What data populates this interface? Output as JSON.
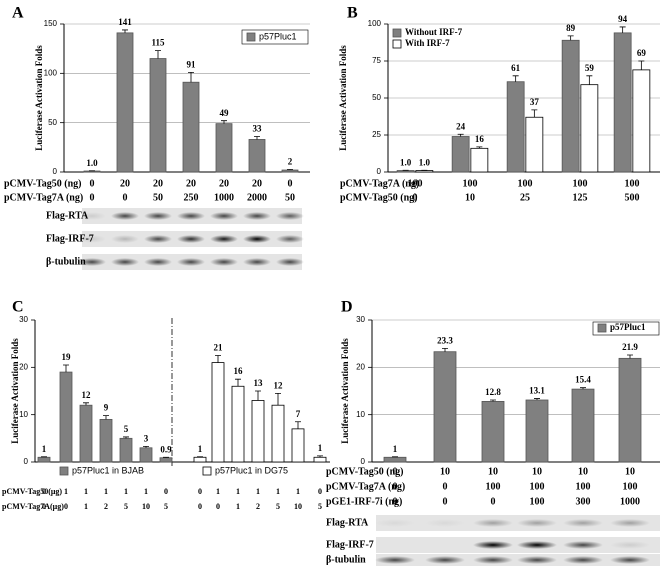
{
  "chart_data": [
    {
      "type": "bar",
      "panel_label": "A",
      "y_label": "Luciferase Activation Folds",
      "series": [
        {
          "name": "p57Pluc1",
          "color": "#808080",
          "values": [
            1.0,
            141,
            115,
            91,
            49,
            33,
            2
          ],
          "value_labels": [
            "1.0",
            "141",
            "115",
            "91",
            "49",
            "33",
            "2"
          ],
          "errors": [
            0.3,
            3,
            8,
            10,
            3,
            3,
            0.5
          ]
        }
      ],
      "ylim": [
        0,
        150
      ],
      "yticks": [
        0,
        50,
        100,
        150
      ],
      "grid": true,
      "legend": "top-right",
      "conditions": [
        {
          "label": "pCMV-Tag50 (ng)",
          "values": [
            0,
            20,
            20,
            20,
            20,
            20,
            0
          ]
        },
        {
          "label": "pCMV-Tag7A (ng)",
          "values": [
            0,
            0,
            50,
            250,
            1000,
            2000,
            50
          ]
        }
      ],
      "blots": [
        "Flag-RTA",
        "Flag-IRF-7",
        "β-tubulin"
      ]
    },
    {
      "type": "bar",
      "panel_label": "B",
      "y_label": "Luciferase Activation Folds",
      "series": [
        {
          "name": "Without IRF-7",
          "color": "#808080",
          "values": [
            1.0,
            24,
            61,
            89,
            94
          ],
          "value_labels": [
            "1.0",
            "24",
            "61",
            "89",
            "94"
          ],
          "errors": [
            0.2,
            1.5,
            4,
            3,
            4
          ]
        },
        {
          "name": "With IRF-7",
          "color": "#ffffff",
          "values": [
            1.0,
            16,
            37,
            59,
            69
          ],
          "value_labels": [
            "1.0",
            "16",
            "37",
            "59",
            "69"
          ],
          "errors": [
            0.2,
            1,
            5,
            6,
            6
          ]
        }
      ],
      "ylim": [
        0,
        100
      ],
      "yticks": [
        0,
        25,
        50,
        75,
        100
      ],
      "grid": true,
      "legend": "top-left",
      "conditions": [
        {
          "label": "pCMV-Tag7A (ng)",
          "values": [
            100,
            100,
            100,
            100,
            100
          ]
        },
        {
          "label": "pCMV-Tag50 (ng)",
          "values": [
            0,
            10,
            25,
            125,
            500
          ]
        }
      ]
    },
    {
      "type": "bar",
      "panel_label": "C",
      "y_label": "Luciferase Activation Folds",
      "series": [
        {
          "name": "p57Pluc1 in BJAB",
          "color": "#808080",
          "values": [
            1,
            19,
            12,
            9,
            5,
            3,
            0.9
          ],
          "errors": [
            0.1,
            1.5,
            0.5,
            0.8,
            0.3,
            0.3,
            0.1
          ]
        },
        {
          "name": "p57Pluc1 in DG75",
          "color": "#ffffff",
          "values": [
            1,
            21,
            16,
            13,
            12,
            7,
            1
          ],
          "errors": [
            0.1,
            1.5,
            1.5,
            2,
            2.5,
            1.5,
            0.3
          ]
        }
      ],
      "ylim": [
        0,
        30
      ],
      "yticks": [
        0,
        10,
        20,
        30
      ],
      "grid": false,
      "legend": "bottom",
      "conditions": [
        {
          "label": "pCMV-Tag50(μg)",
          "values": [
            0,
            1,
            1,
            1,
            1,
            1,
            0,
            0,
            1,
            1,
            1,
            1,
            1,
            0
          ]
        },
        {
          "label": "pCMV-Tag7A(μg)",
          "values": [
            0,
            0,
            1,
            2,
            5,
            10,
            5,
            0,
            0,
            1,
            2,
            5,
            10,
            5
          ]
        }
      ]
    },
    {
      "type": "bar",
      "panel_label": "D",
      "y_label": "Luciferase Activation Folds",
      "series": [
        {
          "name": "p57Pluc1",
          "color": "#808080",
          "values": [
            1,
            23.3,
            12.8,
            13.1,
            15.4,
            21.9
          ],
          "errors": [
            0.1,
            0.7,
            0.3,
            0.3,
            0.3,
            0.7
          ]
        }
      ],
      "ylim": [
        0,
        30
      ],
      "yticks": [
        0,
        10,
        20,
        30
      ],
      "grid": true,
      "legend": "top-right",
      "conditions": [
        {
          "label": "pCMV-Tag50 (ng)",
          "values": [
            0,
            10,
            10,
            10,
            10,
            10
          ]
        },
        {
          "label": "pCMV-Tag7A (ng)",
          "values": [
            0,
            0,
            100,
            100,
            100,
            100
          ]
        },
        {
          "label": "pGE1-IRF-7i (ng)",
          "values": [
            0,
            0,
            0,
            100,
            300,
            1000
          ]
        }
      ],
      "blots": [
        "Flag-RTA",
        "Flag-IRF-7",
        "β-tubulin"
      ]
    }
  ]
}
